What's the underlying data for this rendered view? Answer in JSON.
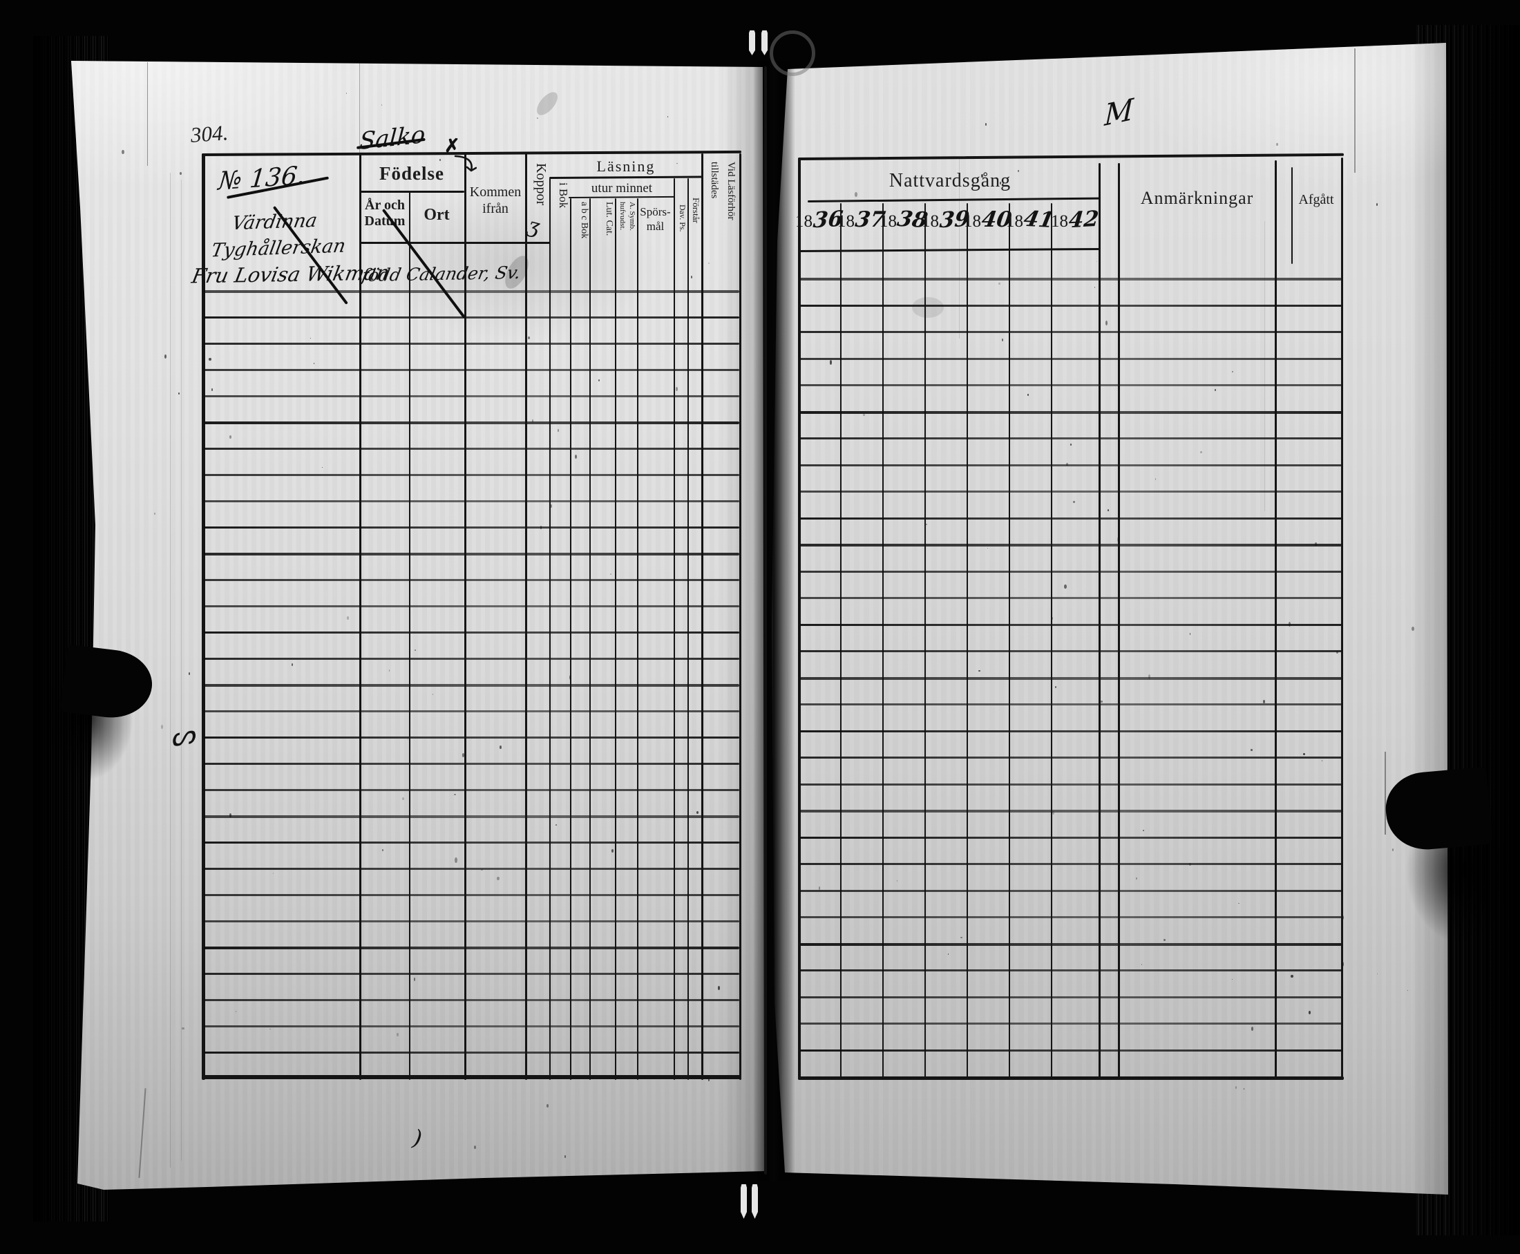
{
  "scan": {
    "page_number_left": "304.",
    "annotations": {
      "crossed_word_top": "Salko",
      "entry_number": "№ 136.",
      "name_line_1": "Värdinna",
      "name_line_2": "Tyghållerskan",
      "name_line_3": "Fru Lovisa Wikman",
      "birth_note": "född Calander, Sv.",
      "koppor_mark": "ʒ",
      "x_mark": "✗",
      "right_page_flourish": "M",
      "below_table_mark": ")"
    }
  },
  "left_table": {
    "group_fodelse": "Födelse",
    "group_lasning": "Läsning",
    "group_utur_minnet": "utur minnet",
    "col_ar_och_datum_l1": "År och",
    "col_ar_och_datum_l2": "Datum",
    "col_ort": "Ort",
    "col_kommen_l1": "Kommen",
    "col_kommen_l2": "ifrån",
    "col_koppor": "Koppor",
    "col_i_bok": "i Bok",
    "col_abc_bok": "a b c Bok",
    "col_lut_cat": "Lut. Cat.",
    "col_symb_l1": "A. Symb.",
    "col_symb_l2": "hufvudst.",
    "col_sporsmal_l1": "Spörs-",
    "col_sporsmal_l2": "mål",
    "col_dav_ps": "Dav. Ps.",
    "col_forstar": "Förstår",
    "col_vid_l1": "Vid Läsförhör",
    "col_vid_l2": "tillstädes"
  },
  "right_table": {
    "group_nattvardsgang": "Nattvardsgång",
    "years": [
      "1836",
      "1837",
      "1838",
      "1839",
      "1840",
      "1841",
      "1842"
    ],
    "col_anmarkningar": "Anmärkningar",
    "col_afgatt": "Afgått"
  },
  "colors": {
    "paper": "#dcdcd6",
    "ink": "#1b1713",
    "background": "#030303"
  }
}
